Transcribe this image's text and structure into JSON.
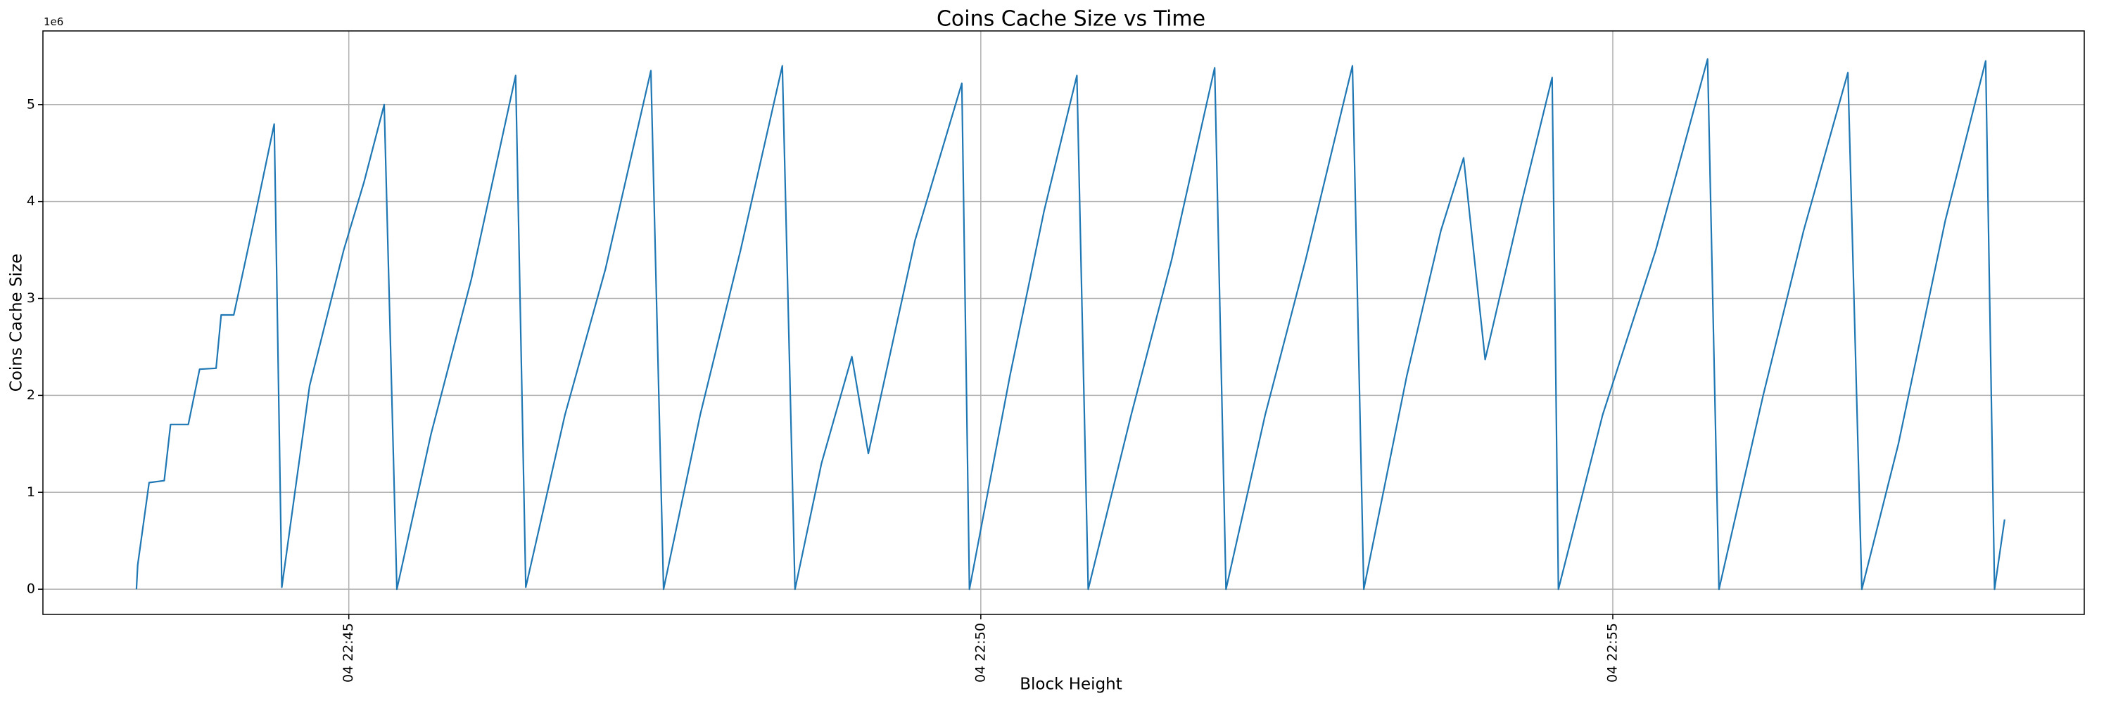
{
  "chart_data": {
    "type": "line",
    "title": "Coins Cache Size vs Time",
    "xlabel": "Block Height",
    "ylabel": "Coins Cache Size",
    "y_offset_label": "1e6",
    "x": [
      43.32,
      43.33,
      43.42,
      43.54,
      43.59,
      43.73,
      43.82,
      43.95,
      43.99,
      44.09,
      44.25,
      44.41,
      44.47,
      44.69,
      44.96,
      45.12,
      45.28,
      45.38,
      45.65,
      45.97,
      46.32,
      46.4,
      46.71,
      47.03,
      47.39,
      47.49,
      47.78,
      48.1,
      48.43,
      48.53,
      48.74,
      48.98,
      49.11,
      49.48,
      49.85,
      49.91,
      50.23,
      50.5,
      50.76,
      50.85,
      51.19,
      51.51,
      51.85,
      51.94,
      52.25,
      52.57,
      52.94,
      53.03,
      53.37,
      53.64,
      53.82,
      53.99,
      54.28,
      54.52,
      54.57,
      54.92,
      55.34,
      55.75,
      55.84,
      56.19,
      56.51,
      56.86,
      56.97,
      57.26,
      57.63,
      57.95,
      58.02,
      58.1
    ],
    "series": [
      {
        "color": "#1f77b4",
        "values": [
          0,
          0.25,
          1.1,
          1.12,
          1.7,
          1.7,
          2.27,
          2.28,
          2.83,
          2.83,
          3.8,
          4.8,
          0.02,
          2.1,
          3.5,
          4.2,
          5.0,
          0,
          1.6,
          3.2,
          5.3,
          0.02,
          1.8,
          3.3,
          5.35,
          0,
          1.8,
          3.5,
          5.4,
          0,
          1.3,
          2.4,
          1.4,
          3.6,
          5.22,
          0,
          2.2,
          3.9,
          5.3,
          0,
          1.8,
          3.4,
          5.38,
          0,
          1.8,
          3.4,
          5.4,
          0,
          2.2,
          3.7,
          4.45,
          2.37,
          4.0,
          5.28,
          0,
          1.8,
          3.5,
          5.47,
          0,
          2.0,
          3.7,
          5.33,
          0,
          1.5,
          3.8,
          5.45,
          0,
          0.72
        ]
      }
    ],
    "xlim": [
      42.58,
      58.73
    ],
    "xticks": [
      {
        "value": 45,
        "label": "04 22:45"
      },
      {
        "value": 50,
        "label": "04 22:50"
      },
      {
        "value": 55,
        "label": "04 22:55"
      }
    ],
    "ylim": [
      -0.26,
      5.76
    ],
    "yticks": [
      0,
      1,
      2,
      3,
      4,
      5
    ],
    "grid": true
  }
}
